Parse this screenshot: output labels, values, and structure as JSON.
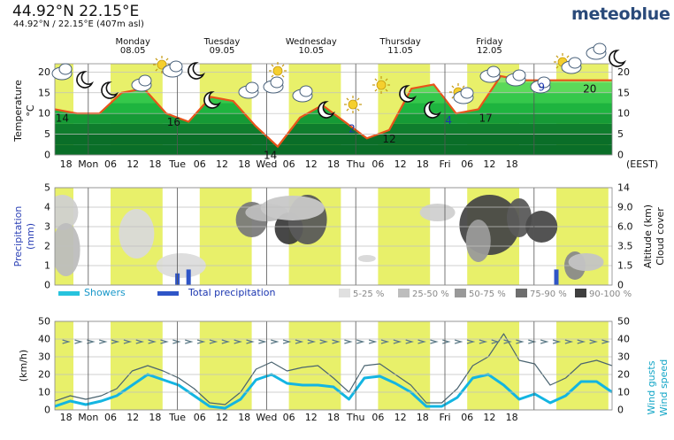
{
  "header": {
    "title": "44.92°N 22.15°E",
    "subtitle": "44.92°N / 22.15°E (407m asl)",
    "brand": "meteoblue"
  },
  "days": [
    {
      "name": "Monday",
      "date": "08.05"
    },
    {
      "name": "Tuesday",
      "date": "09.05"
    },
    {
      "name": "Wednesday",
      "date": "10.05"
    },
    {
      "name": "Thursday",
      "date": "11.05"
    },
    {
      "name": "Friday",
      "date": "12.05"
    }
  ],
  "x_ticks": [
    "18",
    "Mon",
    "06",
    "12",
    "18",
    "Tue",
    "06",
    "12",
    "18",
    "Wed",
    "06",
    "12",
    "18",
    "Thu",
    "06",
    "12",
    "18",
    "Fri",
    "06",
    "12",
    "18"
  ],
  "timezone_label": "(EEST)",
  "colors": {
    "day_band": "#e8f06a",
    "temp_line": "#e8531a",
    "precip_bar": "#2f55c7",
    "wind": "#13b5e2",
    "gust": "#4a6470",
    "legend_showers": "#27c3dd"
  },
  "chart_data": [
    {
      "type": "area",
      "title": "",
      "ylabel": "Temperature °C",
      "ylim": [
        0,
        22
      ],
      "y_ticks": [
        0,
        5,
        10,
        15,
        20
      ],
      "right_ticks": [
        0,
        5,
        10,
        15,
        20
      ],
      "x": [
        0,
        6,
        12,
        18,
        24,
        30,
        36,
        42,
        48,
        54,
        60,
        66,
        72,
        78,
        84,
        90,
        96,
        102,
        108,
        114,
        120,
        126
      ],
      "series": [
        {
          "values": [
            11,
            10,
            10,
            15,
            16,
            10,
            8,
            14,
            13,
            7,
            2,
            9,
            12,
            8,
            4,
            6,
            16,
            17,
            10,
            11,
            19,
            18
          ]
        }
      ],
      "labels": [
        {
          "hour": 2,
          "text": "14",
          "kind": "max"
        },
        {
          "hour": 32,
          "text": "16",
          "kind": "max"
        },
        {
          "hour": 58,
          "text": "14",
          "kind": "max"
        },
        {
          "hour": 80,
          "text": "2",
          "kind": "min"
        },
        {
          "hour": 90,
          "text": "12",
          "kind": "max"
        },
        {
          "hour": 106,
          "text": "4",
          "kind": "min"
        },
        {
          "hour": 116,
          "text": "17",
          "kind": "max"
        },
        {
          "hour": 131,
          "text": "9",
          "kind": "min"
        },
        {
          "hour": 144,
          "text": "20",
          "kind": "max"
        }
      ]
    },
    {
      "type": "bar",
      "title": "",
      "ylabel": "Precipitation (mm)",
      "right_label": "Altitude (km) Cloud cover",
      "ylim": [
        0,
        5
      ],
      "y_ticks": [
        0,
        1,
        2,
        3,
        4,
        5
      ],
      "right_ticks": [
        "0",
        "1.5",
        "3.5",
        "6.0",
        "9.0",
        "14"
      ],
      "series": [
        {
          "name": "Showers",
          "values": []
        },
        {
          "name": "Total precipitation",
          "bars": [
            {
              "hour": 33,
              "value": 0.6
            },
            {
              "hour": 36,
              "value": 0.8
            },
            {
              "hour": 135,
              "value": 0.8
            }
          ]
        }
      ],
      "legend": [
        "5-25 %",
        "25-50 %",
        "50-75 %",
        "75-90 %",
        "90-100 %"
      ]
    },
    {
      "type": "line",
      "title": "",
      "ylabel": "(km/h)",
      "right_label": "Wind gusts Wind speed",
      "ylim": [
        0,
        50
      ],
      "y_ticks": [
        0,
        10,
        20,
        30,
        40,
        50
      ],
      "right_ticks": [
        0,
        10,
        20,
        30,
        40,
        50
      ],
      "series": [
        {
          "name": "Wind speed",
          "values": [
            2,
            5,
            3,
            5,
            8,
            14,
            20,
            17,
            14,
            8,
            2,
            1,
            6,
            17,
            20,
            15,
            14,
            14,
            13,
            6,
            18,
            19,
            15,
            10,
            2,
            2,
            7,
            18,
            20,
            14,
            6,
            9,
            4,
            8,
            16,
            16,
            10
          ]
        },
        {
          "name": "Wind gusts",
          "values": [
            5,
            8,
            6,
            8,
            12,
            22,
            25,
            22,
            18,
            12,
            4,
            3,
            10,
            23,
            27,
            22,
            24,
            25,
            18,
            10,
            25,
            26,
            20,
            14,
            4,
            4,
            12,
            25,
            30,
            43,
            28,
            26,
            14,
            18,
            26,
            28,
            25
          ]
        }
      ]
    }
  ]
}
